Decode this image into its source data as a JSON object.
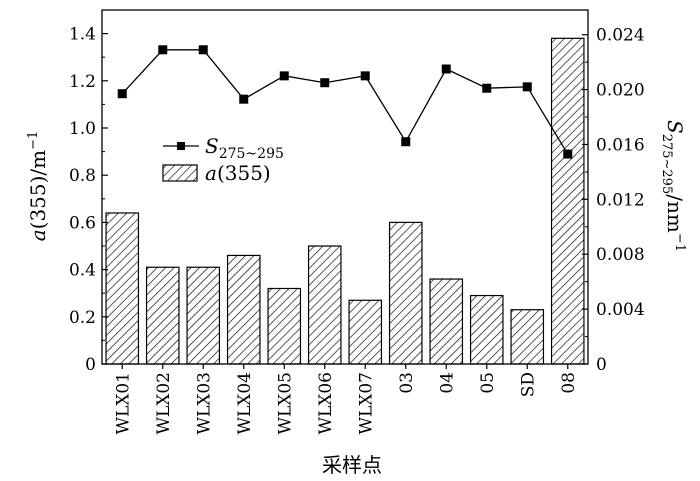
{
  "chart_data": {
    "type": "bar",
    "categories": [
      "WLX01",
      "WLX02",
      "WLX03",
      "WLX04",
      "WLX05",
      "WLX06",
      "WLX07",
      "03",
      "04",
      "05",
      "SD",
      "08"
    ],
    "xlabel": "采样点",
    "ylabel": {
      "prefix": "a",
      "rest": "(355)/m",
      "sup": "−1"
    },
    "y2label": {
      "prefix": "S",
      "sub": "275~295",
      "rest": "/nm",
      "sup": "−1"
    },
    "ylim": [
      0,
      1.5
    ],
    "y2lim": [
      0,
      0.0258
    ],
    "yticks": [
      "0",
      "0.2",
      "0.4",
      "0.6",
      "0.8",
      "1.0",
      "1.2",
      "1.4"
    ],
    "y2ticks": [
      "0",
      "0.004",
      "0.008",
      "0.012",
      "0.016",
      "0.020",
      "0.024"
    ],
    "series": [
      {
        "name": "a(355)",
        "kind": "bar",
        "axis": "left",
        "fill": "hatched",
        "values": [
          0.64,
          0.41,
          0.41,
          0.46,
          0.32,
          0.5,
          0.27,
          0.6,
          0.36,
          0.29,
          0.23,
          1.38
        ]
      },
      {
        "name": "S275~295",
        "kind": "line",
        "axis": "right",
        "marker": "square",
        "values": [
          0.0197,
          0.0229,
          0.0229,
          0.0193,
          0.021,
          0.0205,
          0.021,
          0.0162,
          0.0215,
          0.0201,
          0.0202,
          0.0153
        ]
      }
    ],
    "legend": {
      "position": "upper-left-inside",
      "line_label": {
        "prefix": "S",
        "sub": "275~295"
      },
      "bar_label": {
        "prefix": "a",
        "rest": "(355)"
      }
    },
    "colors": {
      "ink": "#000000",
      "background": "#ffffff"
    },
    "grid": false
  }
}
